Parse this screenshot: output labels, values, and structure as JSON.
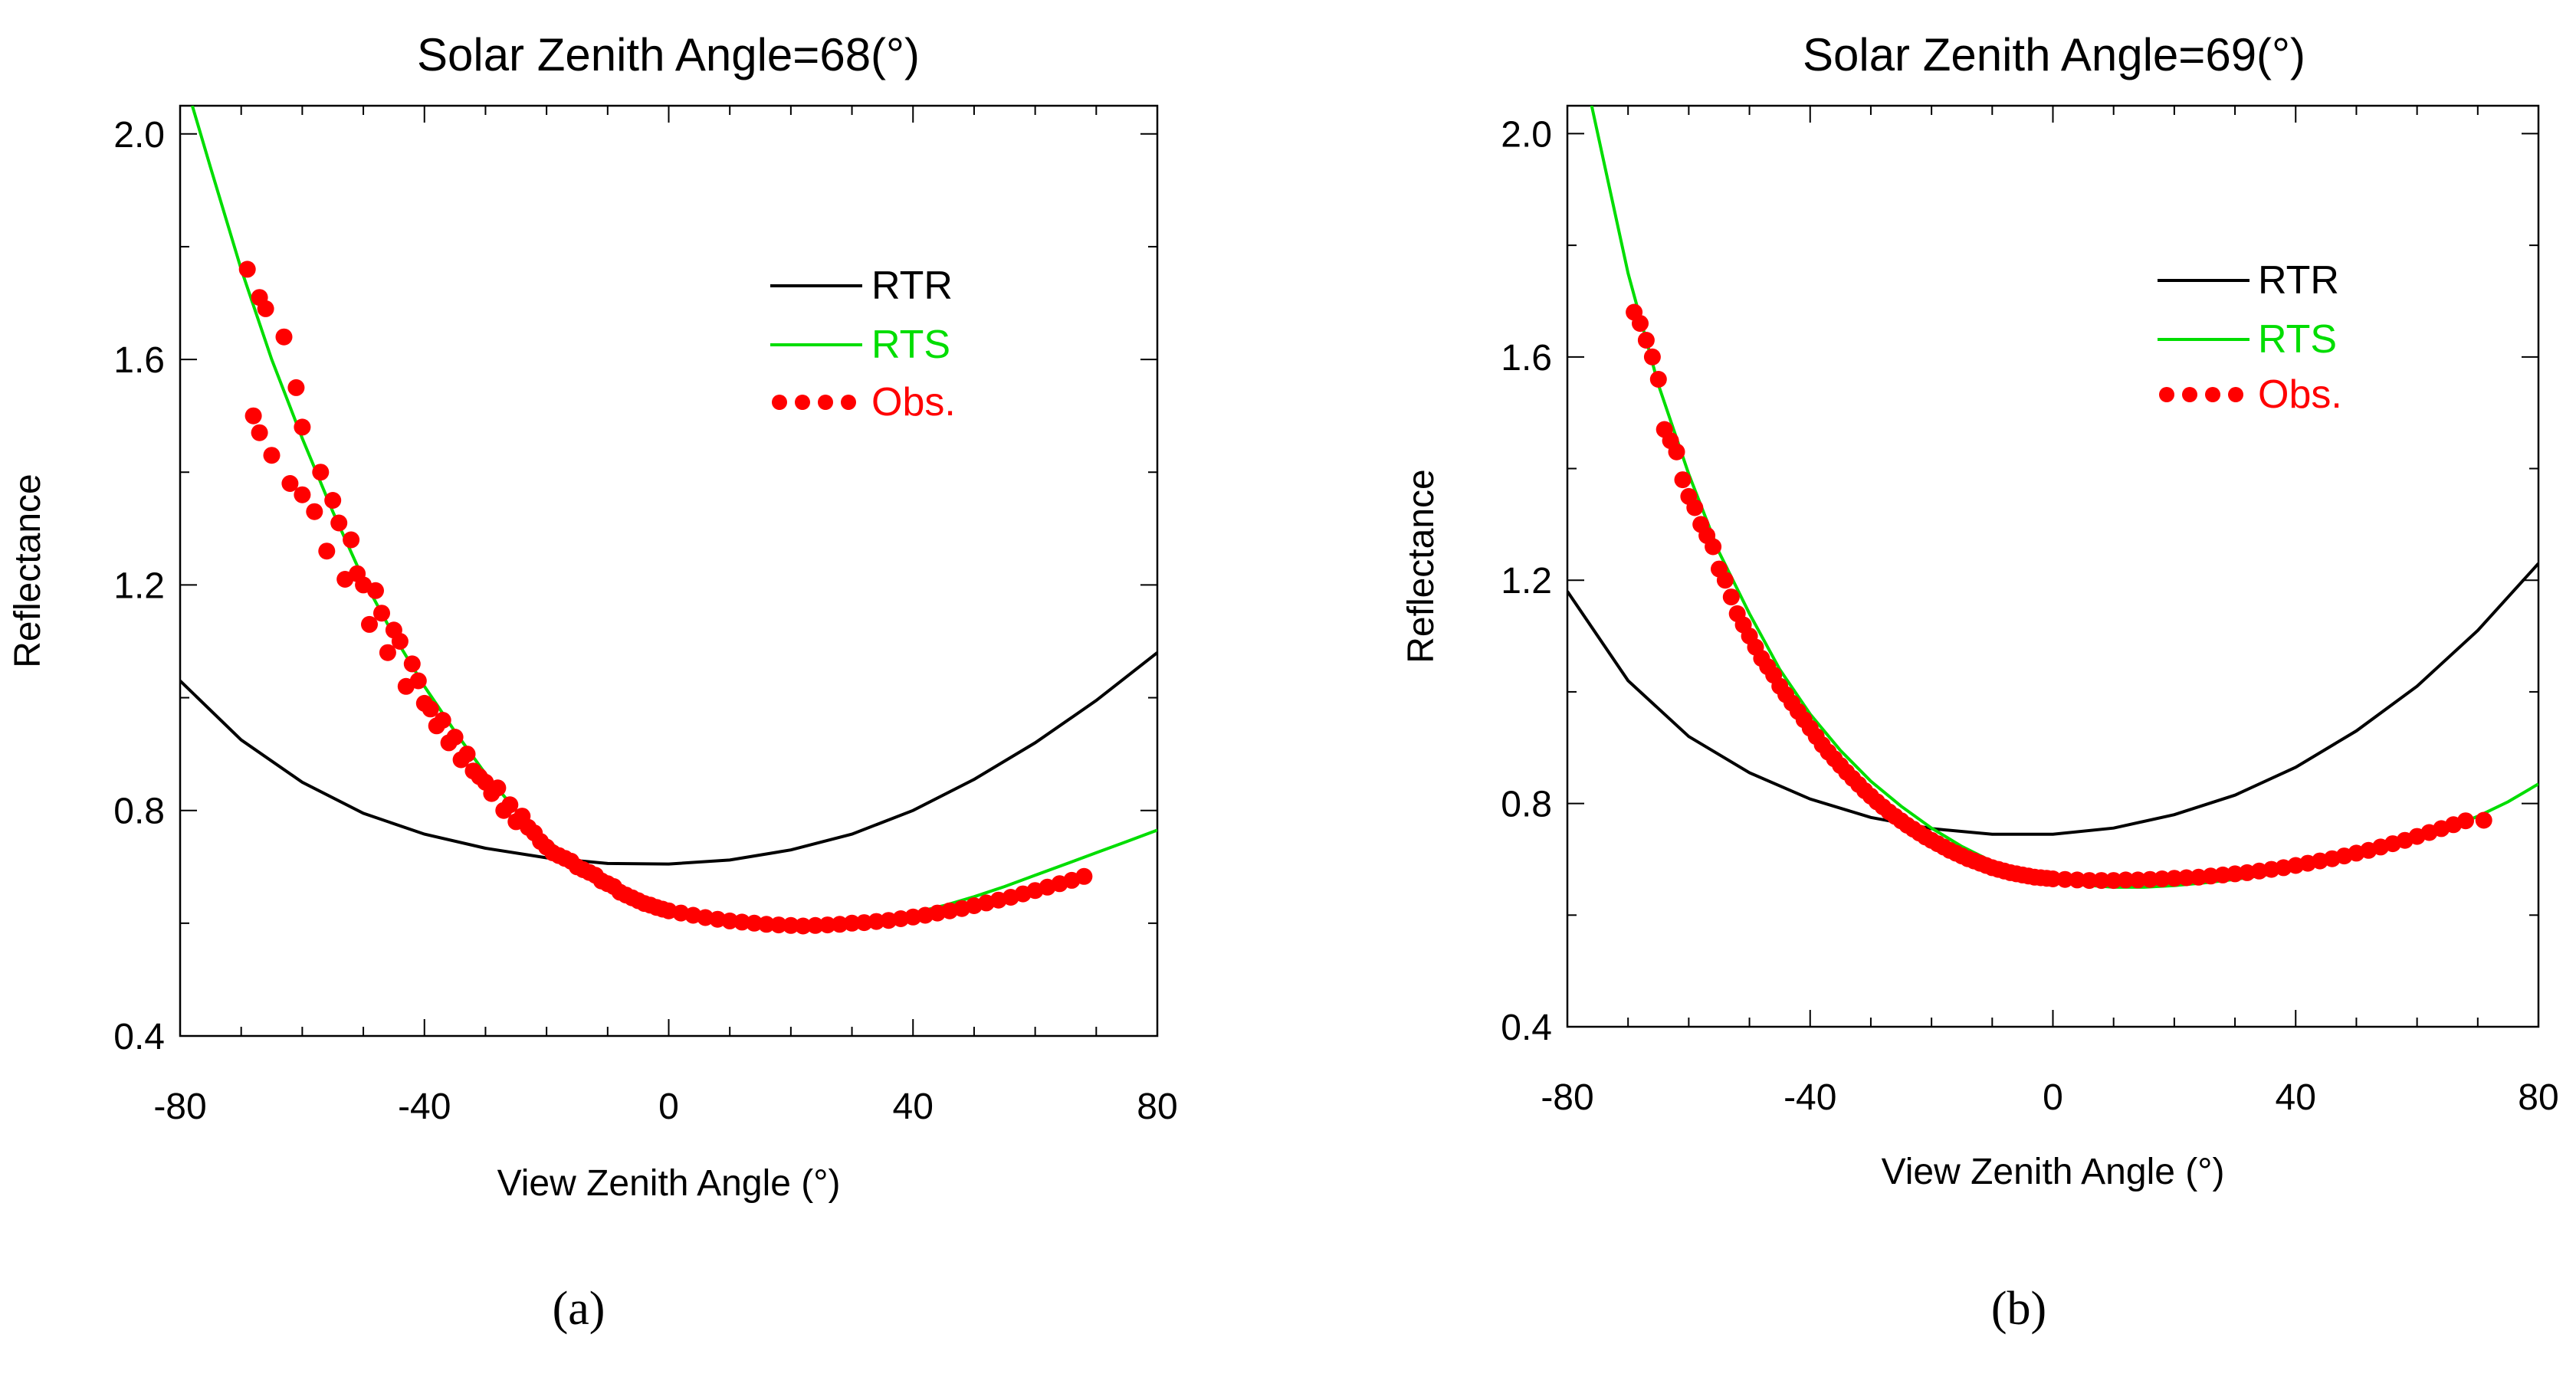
{
  "chart_data": [
    {
      "type": "line",
      "panel_label": "(a)",
      "title": "Solar Zenith Angle=68(°)",
      "xlabel": "View Zenith Angle (°)",
      "ylabel": "Reflectance",
      "xlim": [
        -80,
        80
      ],
      "ylim": [
        0.4,
        2.05
      ],
      "x_ticks": [
        -80,
        -40,
        0,
        40,
        80
      ],
      "x_tick_labels": [
        "-80",
        "-40",
        "0",
        "40",
        "80"
      ],
      "y_ticks": [
        0.4,
        0.8,
        1.2,
        1.6,
        2.0
      ],
      "y_tick_labels": [
        "0.4",
        "0.8",
        "1.2",
        "1.6",
        "2.0"
      ],
      "grid": false,
      "legend_position": "upper-right",
      "series": [
        {
          "name": "RTR",
          "kind": "line",
          "color": "#000000",
          "x": [
            -80,
            -70,
            -60,
            -50,
            -40,
            -30,
            -20,
            -10,
            0,
            10,
            20,
            30,
            40,
            50,
            60,
            70,
            80
          ],
          "y": [
            1.03,
            0.925,
            0.85,
            0.795,
            0.758,
            0.733,
            0.716,
            0.706,
            0.705,
            0.712,
            0.73,
            0.758,
            0.8,
            0.855,
            0.92,
            0.995,
            1.08
          ]
        },
        {
          "name": "RTS",
          "kind": "line",
          "color": "#00dd00",
          "x": [
            -78,
            -75,
            -70,
            -65,
            -60,
            -55,
            -50,
            -45,
            -40,
            -35,
            -30,
            -25,
            -20,
            -15,
            -10,
            -5,
            0,
            5,
            10,
            15,
            20,
            25,
            30,
            35,
            40,
            45,
            50,
            55,
            60,
            65,
            70,
            75,
            80
          ],
          "y": [
            2.05,
            1.94,
            1.76,
            1.6,
            1.46,
            1.33,
            1.21,
            1.11,
            1.02,
            0.94,
            0.865,
            0.8,
            0.748,
            0.706,
            0.672,
            0.646,
            0.627,
            0.613,
            0.604,
            0.598,
            0.596,
            0.597,
            0.601,
            0.608,
            0.618,
            0.631,
            0.647,
            0.665,
            0.685,
            0.705,
            0.725,
            0.745,
            0.765
          ]
        },
        {
          "name": "Obs.",
          "kind": "scatter",
          "color": "#ff0000",
          "x": [
            -69,
            -68,
            -67,
            -67,
            -66,
            -65,
            -63,
            -62,
            -61,
            -60,
            -60,
            -58,
            -57,
            -56,
            -55,
            -54,
            -53,
            -52,
            -51,
            -50,
            -49,
            -48,
            -47,
            -46,
            -45,
            -44,
            -43,
            -42,
            -41,
            -40,
            -39,
            -38,
            -37,
            -36,
            -35,
            -34,
            -33,
            -32,
            -31,
            -30,
            -29,
            -28,
            -27,
            -26,
            -25,
            -24,
            -23,
            -22,
            -21,
            -20,
            -19,
            -18,
            -17,
            -16,
            -15,
            -14,
            -13,
            -12,
            -11,
            -10,
            -9,
            -8,
            -7,
            -6,
            -5,
            -4,
            -3,
            -2,
            -1,
            0,
            2,
            4,
            6,
            8,
            10,
            12,
            14,
            16,
            18,
            20,
            22,
            24,
            26,
            28,
            30,
            32,
            34,
            36,
            38,
            40,
            42,
            44,
            46,
            48,
            50,
            52,
            54,
            56,
            58,
            60,
            62,
            64,
            66,
            68
          ],
          "y": [
            1.76,
            1.5,
            1.71,
            1.47,
            1.69,
            1.43,
            1.64,
            1.38,
            1.55,
            1.36,
            1.48,
            1.33,
            1.4,
            1.26,
            1.35,
            1.31,
            1.21,
            1.28,
            1.22,
            1.2,
            1.13,
            1.19,
            1.15,
            1.08,
            1.12,
            1.1,
            1.02,
            1.06,
            1.03,
            0.99,
            0.98,
            0.95,
            0.96,
            0.92,
            0.93,
            0.89,
            0.9,
            0.87,
            0.86,
            0.85,
            0.83,
            0.84,
            0.8,
            0.81,
            0.78,
            0.79,
            0.77,
            0.76,
            0.745,
            0.735,
            0.725,
            0.72,
            0.715,
            0.71,
            0.7,
            0.695,
            0.69,
            0.685,
            0.675,
            0.67,
            0.665,
            0.655,
            0.65,
            0.645,
            0.64,
            0.635,
            0.632,
            0.628,
            0.625,
            0.622,
            0.618,
            0.614,
            0.61,
            0.607,
            0.604,
            0.602,
            0.6,
            0.598,
            0.597,
            0.596,
            0.595,
            0.596,
            0.597,
            0.598,
            0.6,
            0.601,
            0.603,
            0.605,
            0.608,
            0.611,
            0.614,
            0.618,
            0.622,
            0.626,
            0.631,
            0.636,
            0.641,
            0.646,
            0.652,
            0.658,
            0.664,
            0.67,
            0.676,
            0.683
          ]
        }
      ]
    },
    {
      "type": "line",
      "panel_label": "(b)",
      "title": "Solar Zenith Angle=69(°)",
      "xlabel": "View Zenith Angle (°)",
      "ylabel": "Reflectance",
      "xlim": [
        -80,
        80
      ],
      "ylim": [
        0.4,
        2.05
      ],
      "x_ticks": [
        -80,
        -40,
        0,
        40,
        80
      ],
      "x_tick_labels": [
        "-80",
        "-40",
        "0",
        "40",
        "80"
      ],
      "y_ticks": [
        0.4,
        0.8,
        1.2,
        1.6,
        2.0
      ],
      "y_tick_labels": [
        "0.4",
        "0.8",
        "1.2",
        "1.6",
        "2.0"
      ],
      "grid": false,
      "legend_position": "upper-right",
      "series": [
        {
          "name": "RTR",
          "kind": "line",
          "color": "#000000",
          "x": [
            -80,
            -70,
            -60,
            -50,
            -40,
            -30,
            -20,
            -10,
            0,
            10,
            20,
            30,
            40,
            50,
            60,
            70,
            80
          ],
          "y": [
            1.18,
            1.02,
            0.92,
            0.855,
            0.808,
            0.775,
            0.755,
            0.745,
            0.745,
            0.756,
            0.78,
            0.815,
            0.865,
            0.93,
            1.01,
            1.11,
            1.23
          ]
        },
        {
          "name": "RTS",
          "kind": "line",
          "color": "#00dd00",
          "x": [
            -76,
            -74,
            -70,
            -65,
            -60,
            -55,
            -50,
            -45,
            -40,
            -35,
            -30,
            -25,
            -20,
            -15,
            -10,
            -5,
            0,
            5,
            10,
            15,
            20,
            25,
            30,
            35,
            40,
            45,
            50,
            55,
            60,
            65,
            70,
            75,
            80
          ],
          "y": [
            2.05,
            1.95,
            1.75,
            1.55,
            1.39,
            1.25,
            1.14,
            1.04,
            0.96,
            0.895,
            0.84,
            0.795,
            0.756,
            0.723,
            0.696,
            0.676,
            0.662,
            0.654,
            0.65,
            0.65,
            0.653,
            0.658,
            0.664,
            0.672,
            0.682,
            0.693,
            0.706,
            0.72,
            0.736,
            0.755,
            0.777,
            0.803,
            0.835
          ]
        },
        {
          "name": "Obs.",
          "kind": "scatter",
          "color": "#ff0000",
          "x": [
            -69,
            -68,
            -67,
            -66,
            -65,
            -64,
            -63,
            -62,
            -61,
            -60,
            -59,
            -58,
            -57,
            -56,
            -55,
            -54,
            -53,
            -52,
            -51,
            -50,
            -49,
            -48,
            -47,
            -46,
            -45,
            -44,
            -43,
            -42,
            -41,
            -40,
            -39,
            -38,
            -37,
            -36,
            -35,
            -34,
            -33,
            -32,
            -31,
            -30,
            -29,
            -28,
            -27,
            -26,
            -25,
            -24,
            -23,
            -22,
            -21,
            -20,
            -19,
            -18,
            -17,
            -16,
            -15,
            -14,
            -13,
            -12,
            -11,
            -10,
            -9,
            -8,
            -7,
            -6,
            -5,
            -4,
            -3,
            -2,
            -1,
            0,
            2,
            4,
            6,
            8,
            10,
            12,
            14,
            16,
            18,
            20,
            22,
            24,
            26,
            28,
            30,
            32,
            34,
            36,
            38,
            40,
            42,
            44,
            46,
            48,
            50,
            52,
            54,
            56,
            58,
            60,
            62,
            64,
            66,
            68,
            71
          ],
          "y": [
            1.68,
            1.66,
            1.63,
            1.6,
            1.56,
            1.47,
            1.45,
            1.43,
            1.38,
            1.35,
            1.33,
            1.3,
            1.28,
            1.26,
            1.22,
            1.2,
            1.17,
            1.14,
            1.12,
            1.1,
            1.08,
            1.06,
            1.045,
            1.03,
            1.01,
            0.995,
            0.98,
            0.965,
            0.95,
            0.935,
            0.92,
            0.905,
            0.892,
            0.88,
            0.868,
            0.856,
            0.845,
            0.834,
            0.823,
            0.813,
            0.803,
            0.794,
            0.785,
            0.777,
            0.769,
            0.761,
            0.754,
            0.747,
            0.74,
            0.734,
            0.728,
            0.722,
            0.716,
            0.711,
            0.706,
            0.701,
            0.697,
            0.693,
            0.689,
            0.685,
            0.682,
            0.679,
            0.676,
            0.674,
            0.672,
            0.67,
            0.668,
            0.667,
            0.666,
            0.665,
            0.664,
            0.663,
            0.662,
            0.662,
            0.662,
            0.663,
            0.663,
            0.664,
            0.665,
            0.666,
            0.667,
            0.668,
            0.67,
            0.672,
            0.674,
            0.676,
            0.679,
            0.682,
            0.685,
            0.689,
            0.693,
            0.697,
            0.701,
            0.706,
            0.711,
            0.716,
            0.722,
            0.728,
            0.734,
            0.741,
            0.748,
            0.755,
            0.762,
            0.769,
            0.77
          ]
        }
      ]
    }
  ]
}
